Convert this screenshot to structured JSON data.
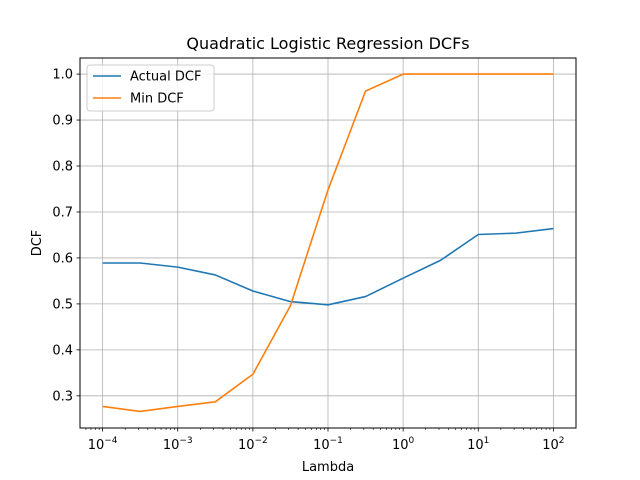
{
  "chart_data": {
    "type": "line",
    "title": "Quadratic Logistic Regression DCFs",
    "xlabel": "Lambda",
    "ylabel": "DCF",
    "x_scale": "log",
    "xlim": [
      5e-05,
      200
    ],
    "ylim": [
      0.23,
      1.035
    ],
    "grid": true,
    "legend_position": "upper-left",
    "x_ticks": [
      {
        "value": 0.0001,
        "base": "10",
        "exp": "−4"
      },
      {
        "value": 0.001,
        "base": "10",
        "exp": "−3"
      },
      {
        "value": 0.01,
        "base": "10",
        "exp": "−2"
      },
      {
        "value": 0.1,
        "base": "10",
        "exp": "−1"
      },
      {
        "value": 1,
        "base": "10",
        "exp": "0"
      },
      {
        "value": 10,
        "base": "10",
        "exp": "1"
      },
      {
        "value": 100,
        "base": "10",
        "exp": "2"
      }
    ],
    "y_ticks": [
      "0.3",
      "0.4",
      "0.5",
      "0.6",
      "0.7",
      "0.8",
      "0.9",
      "1.0"
    ],
    "x": [
      0.0001,
      0.000316,
      0.001,
      0.00316,
      0.01,
      0.0316,
      0.1,
      0.316,
      1,
      3.16,
      10,
      31.6,
      100
    ],
    "series": [
      {
        "name": "Actual DCF",
        "color": "#1f77b4",
        "values": [
          0.589,
          0.589,
          0.58,
          0.563,
          0.528,
          0.505,
          0.498,
          0.516,
          0.556,
          0.595,
          0.651,
          0.654,
          0.664
        ]
      },
      {
        "name": "Min DCF",
        "color": "#ff7f0e",
        "values": [
          0.277,
          0.266,
          0.277,
          0.287,
          0.347,
          0.496,
          0.748,
          0.963,
          1.0,
          1.0,
          1.0,
          1.0,
          1.0
        ]
      }
    ]
  }
}
